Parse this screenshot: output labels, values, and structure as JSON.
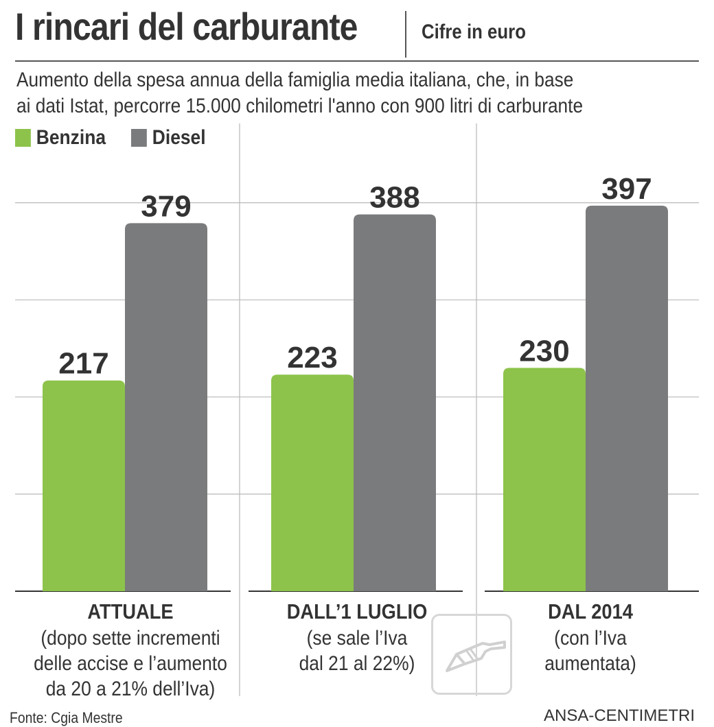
{
  "header": {
    "title": "I rincari del carburante",
    "unit": "Cifre in euro",
    "subtitle_line1": "Aumento della spesa annua della famiglia media italiana, che, in base",
    "subtitle_line2": "ai dati Istat, percorre 15.000 chilometri l'anno con 900 litri di carburante"
  },
  "legend": [
    {
      "label": "Benzina",
      "color": "#8dc34b"
    },
    {
      "label": "Diesel",
      "color": "#7a7b7d"
    }
  ],
  "categories_detail": [
    {
      "title": "ATTUALE",
      "desc": [
        "(dopo sette incrementi",
        "delle accise e l’aumento",
        "da 20 a 21% dell’Iva)"
      ]
    },
    {
      "title": "DALL’1 LUGLIO",
      "desc": [
        "(se sale l’Iva",
        "dal 21 al 22%)"
      ]
    },
    {
      "title": "DAL 2014",
      "desc": [
        "(con l’Iva",
        "aumentata)"
      ]
    }
  ],
  "footer": {
    "source": "Fonte: Cgia Mestre",
    "credit": "ANSA-CENTIMETRI",
    "icon": "fuel-pump-nozzle-icon"
  },
  "chart_data": {
    "type": "bar",
    "categories": [
      "ATTUALE",
      "DALL’1 LUGLIO",
      "DAL 2014"
    ],
    "series": [
      {
        "name": "Benzina",
        "color": "#8dc34b",
        "values": [
          217,
          223,
          230
        ]
      },
      {
        "name": "Diesel",
        "color": "#7a7b7d",
        "values": [
          379,
          388,
          397
        ]
      }
    ],
    "ylim": [
      0,
      500
    ],
    "grid": true,
    "data_labels": true,
    "legend_position": "top-left"
  }
}
